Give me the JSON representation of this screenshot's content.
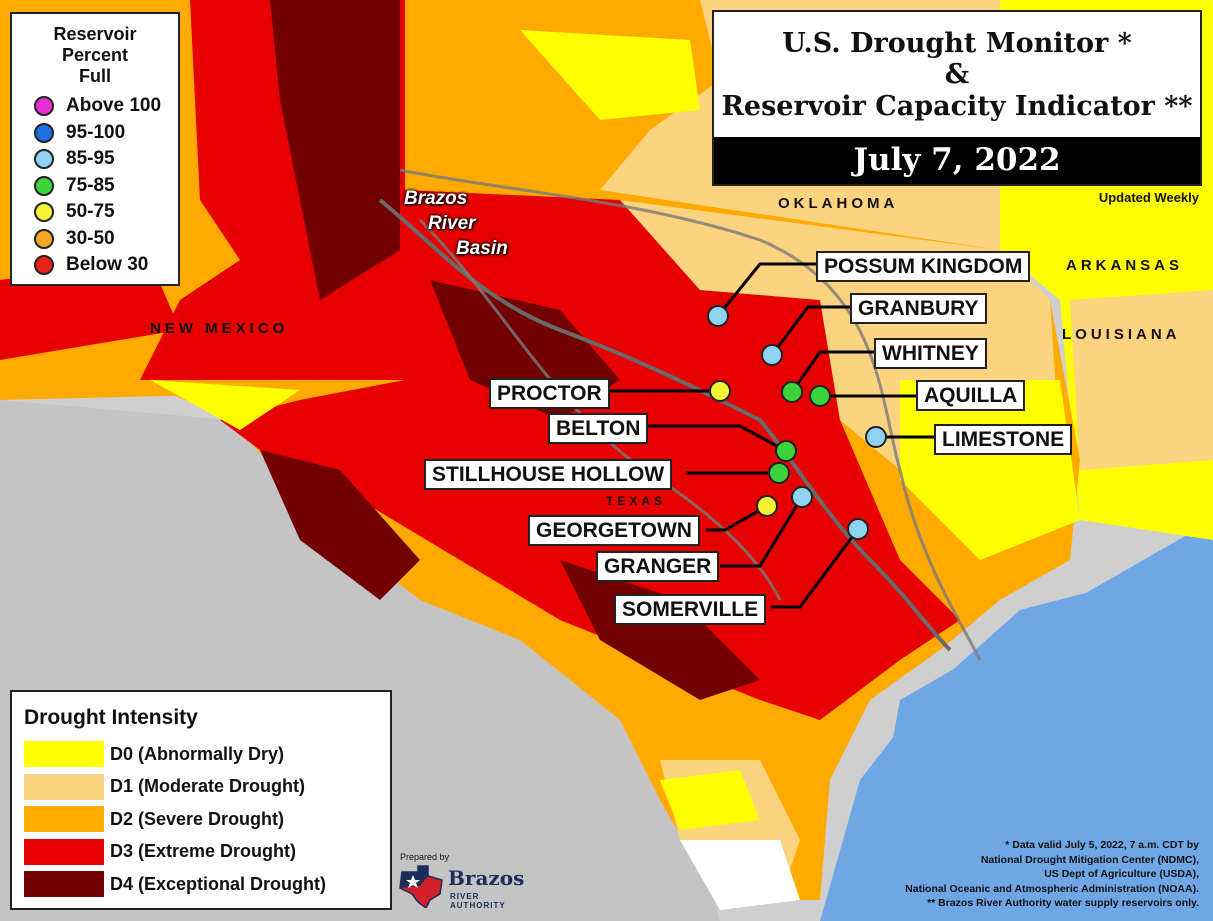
{
  "title": {
    "line1": "U.S. Drought Monitor *",
    "line2": "&",
    "line3": "Reservoir Capacity Indicator **",
    "date": "July 7, 2022",
    "updated": "Updated Weekly"
  },
  "reservoir_legend": {
    "title_line1": "Reservoir",
    "title_line2": "Percent",
    "title_line3": "Full",
    "items": [
      {
        "label": "Above 100",
        "color": "#e52fd0"
      },
      {
        "label": "95-100",
        "color": "#1f6fe0"
      },
      {
        "label": "85-95",
        "color": "#8fd3f2"
      },
      {
        "label": "75-85",
        "color": "#3bd23b"
      },
      {
        "label": "50-75",
        "color": "#f5f232"
      },
      {
        "label": "30-50",
        "color": "#f5a623"
      },
      {
        "label": "Below 30",
        "color": "#e8221b"
      }
    ]
  },
  "drought_legend": {
    "title": "Drought Intensity",
    "items": [
      {
        "label": "D0 (Abnormally Dry)",
        "color": "#ffff00"
      },
      {
        "label": "D1 (Moderate Drought)",
        "color": "#fcd37f"
      },
      {
        "label": "D2 (Severe Drought)",
        "color": "#ffaa00"
      },
      {
        "label": "D3 (Extreme Drought)",
        "color": "#e60000"
      },
      {
        "label": "D4 (Exceptional Drought)",
        "color": "#730000"
      }
    ]
  },
  "geo_labels": {
    "oklahoma": "OKLAHOMA",
    "arkansas": "ARKANSAS",
    "louisiana": "LOUISIANA",
    "new_mexico": "NEW MEXICO",
    "texas": "TEXAS"
  },
  "basin": {
    "line1": "Brazos",
    "line2": "River",
    "line3": "Basin"
  },
  "reservoirs": {
    "possum_kingdom": {
      "name": "POSSUM KINGDOM",
      "status": "85-95"
    },
    "granbury": {
      "name": "GRANBURY",
      "status": "85-95"
    },
    "whitney": {
      "name": "WHITNEY",
      "status": "75-85"
    },
    "aquilla": {
      "name": "AQUILLA",
      "status": "75-85"
    },
    "proctor": {
      "name": "PROCTOR",
      "status": "50-75"
    },
    "limestone": {
      "name": "LIMESTONE",
      "status": "85-95"
    },
    "belton": {
      "name": "BELTON",
      "status": "75-85"
    },
    "stillhouse_hollow": {
      "name": "STILLHOUSE HOLLOW",
      "status": "75-85"
    },
    "georgetown": {
      "name": "GEORGETOWN",
      "status": "50-75"
    },
    "granger": {
      "name": "GRANGER",
      "status": "85-95"
    },
    "somerville": {
      "name": "SOMERVILLE",
      "status": "85-95"
    }
  },
  "credits": {
    "line1": "* Data valid July 5, 2022, 7 a.m. CDT by",
    "line2": "National Drought Mitigation Center (NDMC),",
    "line3": "US Dept of Agriculture (USDA),",
    "line4": "National Oceanic and Atmospheric Administration (NOAA).",
    "line5": "** Brazos River Authority water supply reservoirs only."
  },
  "prepared_by": {
    "label": "Prepared by",
    "org": "Brazos",
    "org_sub": "RIVER AUTHORITY"
  }
}
